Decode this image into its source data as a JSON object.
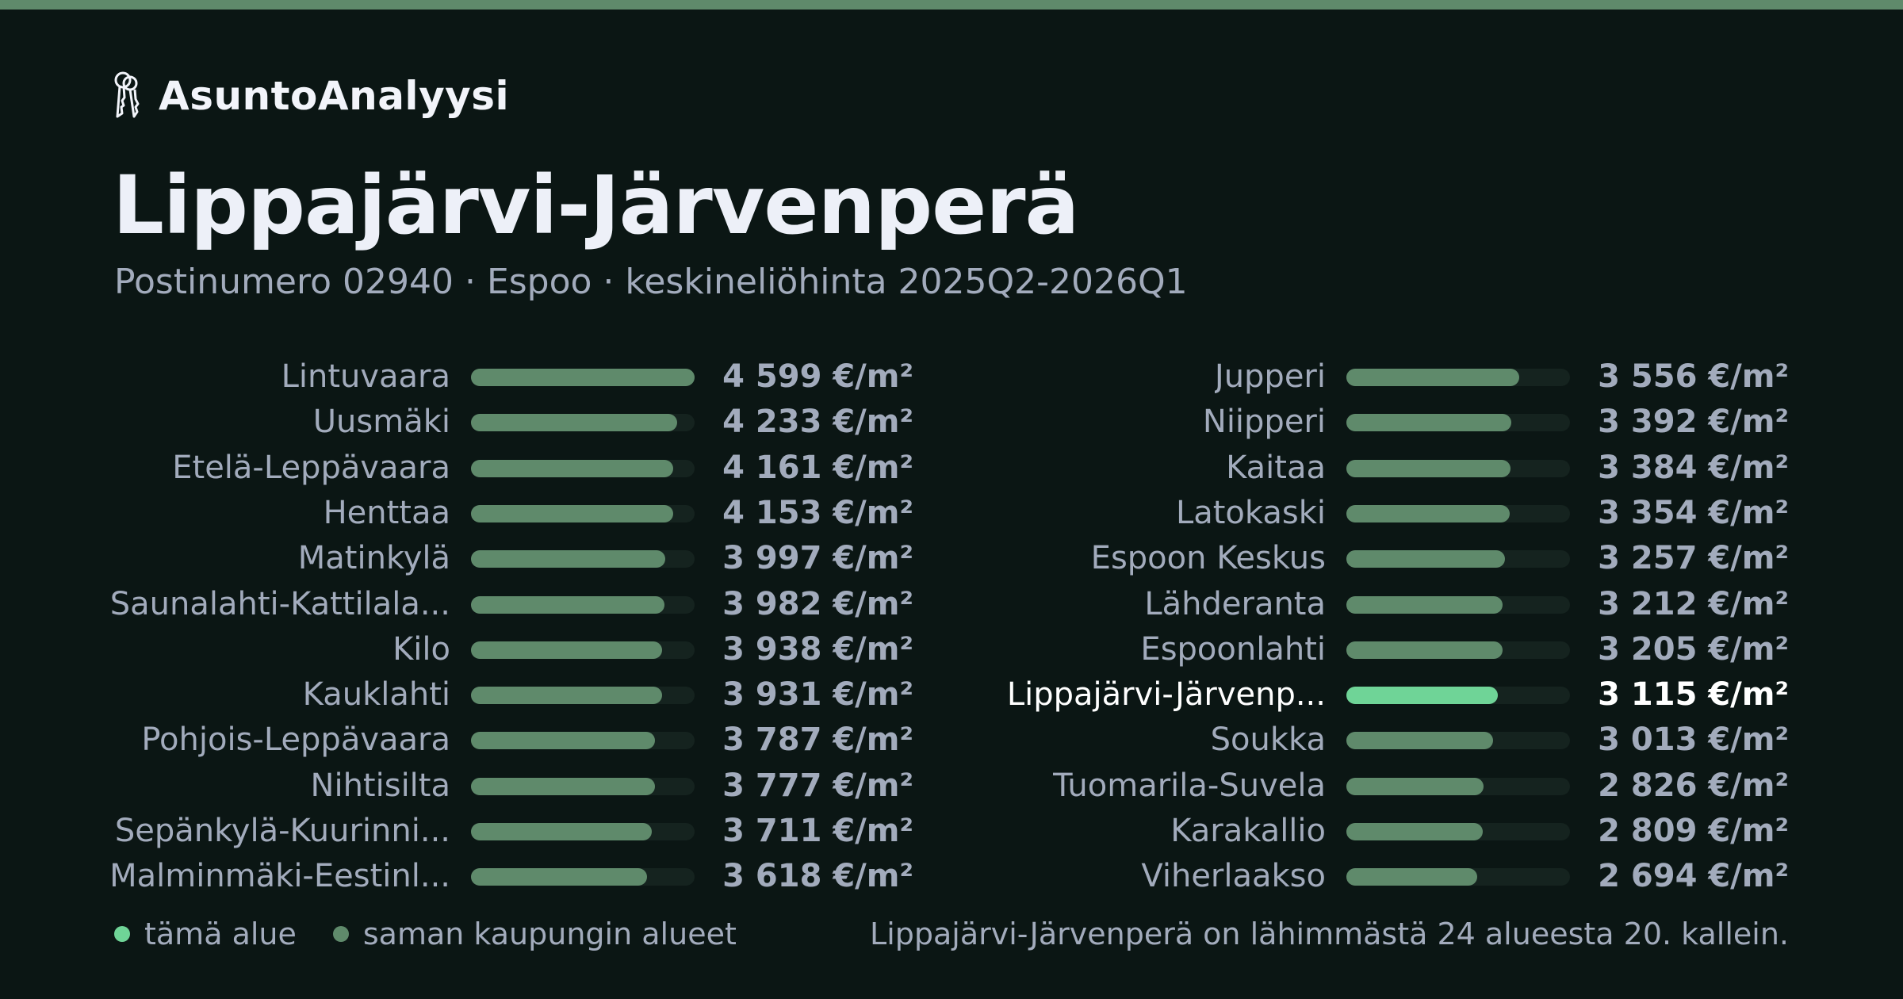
{
  "brand": {
    "name": "AsuntoAnalyysi",
    "icon": "keys-icon"
  },
  "title": "Lippajärvi-Järvenperä",
  "subtitle": "Postinumero 02940 · Espoo · keskineliöhinta 2025Q2-2026Q1",
  "legend": {
    "this_area": "tämä alue",
    "same_city": "saman kaupungin alueet"
  },
  "footnote": "Lippajärvi-Järvenperä on lähimmästä 24 alueesta 20. kallein.",
  "colors": {
    "accent": "#6fd497",
    "bar": "#5f8a6b",
    "track": "#15231f",
    "background": "#0b1614",
    "topbar": "#5f8a6b"
  },
  "chart_data": {
    "type": "bar",
    "orientation": "horizontal",
    "unit": "€/m²",
    "xlim": [
      0,
      4599
    ],
    "highlight": "Lippajärvi-Järvenp...",
    "columns": [
      {
        "rows": [
          {
            "label": "Lintuvaara",
            "value": 4599,
            "display": "4 599 €/m²"
          },
          {
            "label": "Uusmäki",
            "value": 4233,
            "display": "4 233 €/m²"
          },
          {
            "label": "Etelä-Leppävaara",
            "value": 4161,
            "display": "4 161 €/m²"
          },
          {
            "label": "Henttaa",
            "value": 4153,
            "display": "4 153 €/m²"
          },
          {
            "label": "Matinkylä",
            "value": 3997,
            "display": "3 997 €/m²"
          },
          {
            "label": "Saunalahti-Kattilala...",
            "value": 3982,
            "display": "3 982 €/m²"
          },
          {
            "label": "Kilo",
            "value": 3938,
            "display": "3 938 €/m²"
          },
          {
            "label": "Kauklahti",
            "value": 3931,
            "display": "3 931 €/m²"
          },
          {
            "label": "Pohjois-Leppävaara",
            "value": 3787,
            "display": "3 787 €/m²"
          },
          {
            "label": "Nihtisilta",
            "value": 3777,
            "display": "3 777 €/m²"
          },
          {
            "label": "Sepänkylä-Kuurinni...",
            "value": 3711,
            "display": "3 711 €/m²"
          },
          {
            "label": "Malminmäki-Eestinl...",
            "value": 3618,
            "display": "3 618 €/m²"
          }
        ]
      },
      {
        "rows": [
          {
            "label": "Jupperi",
            "value": 3556,
            "display": "3 556 €/m²"
          },
          {
            "label": "Niipperi",
            "value": 3392,
            "display": "3 392 €/m²"
          },
          {
            "label": "Kaitaa",
            "value": 3384,
            "display": "3 384 €/m²"
          },
          {
            "label": "Latokaski",
            "value": 3354,
            "display": "3 354 €/m²"
          },
          {
            "label": "Espoon Keskus",
            "value": 3257,
            "display": "3 257 €/m²"
          },
          {
            "label": "Lähderanta",
            "value": 3212,
            "display": "3 212 €/m²"
          },
          {
            "label": "Espoonlahti",
            "value": 3205,
            "display": "3 205 €/m²"
          },
          {
            "label": "Lippajärvi-Järvenp...",
            "value": 3115,
            "display": "3 115 €/m²"
          },
          {
            "label": "Soukka",
            "value": 3013,
            "display": "3 013 €/m²"
          },
          {
            "label": "Tuomarila-Suvela",
            "value": 2826,
            "display": "2 826 €/m²"
          },
          {
            "label": "Karakallio",
            "value": 2809,
            "display": "2 809 €/m²"
          },
          {
            "label": "Viherlaakso",
            "value": 2694,
            "display": "2 694 €/m²"
          }
        ]
      }
    ]
  }
}
